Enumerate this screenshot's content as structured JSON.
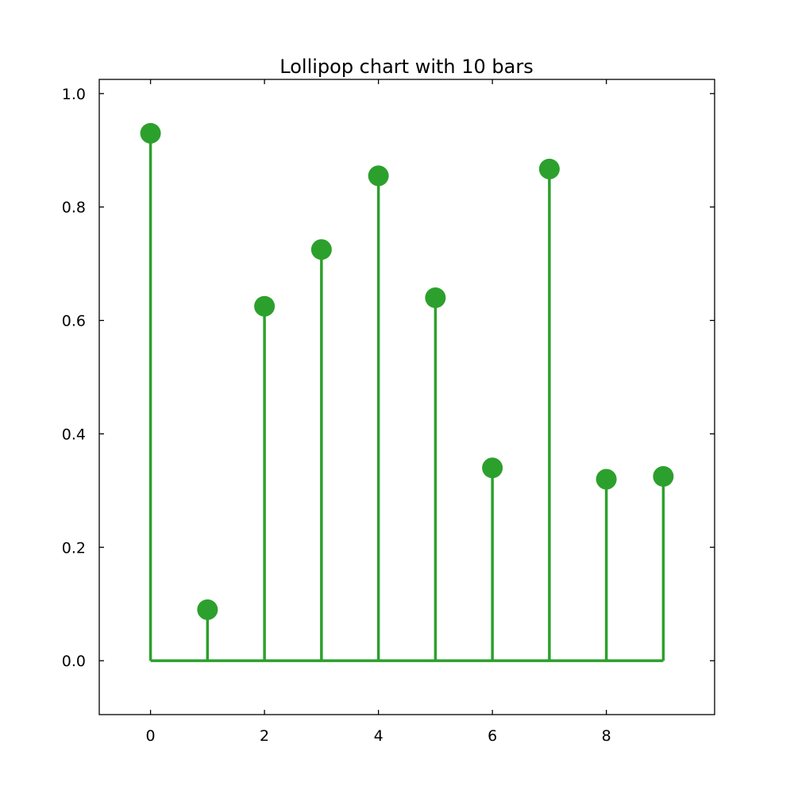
{
  "chart_data": {
    "type": "lollipop",
    "title": "Lollipop chart with 10 bars",
    "xlabel": "",
    "ylabel": "",
    "x": [
      0,
      1,
      2,
      3,
      4,
      5,
      6,
      7,
      8,
      9
    ],
    "values": [
      0.93,
      0.09,
      0.625,
      0.725,
      0.855,
      0.64,
      0.34,
      0.867,
      0.32,
      0.325
    ],
    "baseline": 0.0,
    "xlim": [
      -0.9,
      9.9
    ],
    "ylim": [
      -0.095,
      1.025
    ],
    "xticks": [
      "0",
      "2",
      "4",
      "6",
      "8"
    ],
    "xtick_values": [
      0,
      2,
      4,
      6,
      8
    ],
    "yticks": [
      "0.0",
      "0.2",
      "0.4",
      "0.6",
      "0.8",
      "1.0"
    ],
    "ytick_values": [
      0.0,
      0.2,
      0.4,
      0.6,
      0.8,
      1.0
    ],
    "grid": false,
    "legend": "none",
    "color": "#2ca02c"
  }
}
